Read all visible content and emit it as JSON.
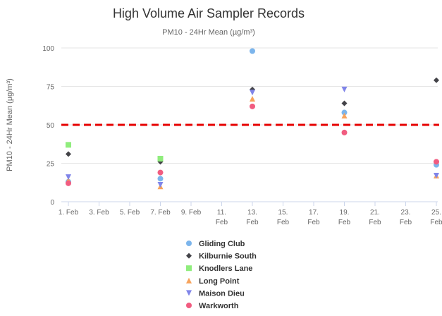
{
  "chart_data": {
    "type": "scatter",
    "title": "High Volume Air Sampler Records",
    "subtitle": "PM10 - 24Hr Mean (µg/m³)",
    "ylabel": "PM10 - 24Hr Mean (µg/m³)",
    "xlabel": "",
    "ylim": [
      0,
      100
    ],
    "yticks": [
      0,
      25,
      50,
      75,
      100
    ],
    "x_axis": {
      "type": "date",
      "range": [
        "2024-02-01",
        "2024-02-25"
      ],
      "ticks": [
        {
          "date": "2024-02-01",
          "lines": [
            "1. Feb"
          ]
        },
        {
          "date": "2024-02-03",
          "lines": [
            "3. Feb"
          ]
        },
        {
          "date": "2024-02-05",
          "lines": [
            "5. Feb"
          ]
        },
        {
          "date": "2024-02-07",
          "lines": [
            "7. Feb"
          ]
        },
        {
          "date": "2024-02-09",
          "lines": [
            "9. Feb"
          ]
        },
        {
          "date": "2024-02-11",
          "lines": [
            "11.",
            "Feb"
          ]
        },
        {
          "date": "2024-02-13",
          "lines": [
            "13.",
            "Feb"
          ]
        },
        {
          "date": "2024-02-15",
          "lines": [
            "15.",
            "Feb"
          ]
        },
        {
          "date": "2024-02-17",
          "lines": [
            "17.",
            "Feb"
          ]
        },
        {
          "date": "2024-02-19",
          "lines": [
            "19.",
            "Feb"
          ]
        },
        {
          "date": "2024-02-21",
          "lines": [
            "21.",
            "Feb"
          ]
        },
        {
          "date": "2024-02-23",
          "lines": [
            "23.",
            "Feb"
          ]
        },
        {
          "date": "2024-02-25",
          "lines": [
            "25.",
            "Feb"
          ]
        }
      ]
    },
    "reference_line": {
      "value": 50,
      "color": "#e60000",
      "style": "dashed"
    },
    "grid": true,
    "legend_position": "bottom",
    "series": [
      {
        "name": "Gliding Club",
        "marker": "circle",
        "color": "#7cb5ec",
        "points": [
          {
            "x": "2024-02-01",
            "y": 13
          },
          {
            "x": "2024-02-07",
            "y": 15
          },
          {
            "x": "2024-02-13",
            "y": 98
          },
          {
            "x": "2024-02-19",
            "y": 58
          },
          {
            "x": "2024-02-25",
            "y": 24
          }
        ]
      },
      {
        "name": "Kilburnie South",
        "marker": "diamond",
        "color": "#434348",
        "points": [
          {
            "x": "2024-02-01",
            "y": 31
          },
          {
            "x": "2024-02-07",
            "y": 26
          },
          {
            "x": "2024-02-13",
            "y": 73
          },
          {
            "x": "2024-02-19",
            "y": 64
          },
          {
            "x": "2024-02-25",
            "y": 79
          }
        ]
      },
      {
        "name": "Knodlers Lane",
        "marker": "square",
        "color": "#90ed7d",
        "points": [
          {
            "x": "2024-02-01",
            "y": 37
          },
          {
            "x": "2024-02-07",
            "y": 28
          }
        ]
      },
      {
        "name": "Long Point",
        "marker": "triangle",
        "color": "#f7a35c",
        "points": [
          {
            "x": "2024-02-01",
            "y": 14
          },
          {
            "x": "2024-02-07",
            "y": 10
          },
          {
            "x": "2024-02-13",
            "y": 67
          },
          {
            "x": "2024-02-19",
            "y": 56
          },
          {
            "x": "2024-02-25",
            "y": 17
          }
        ]
      },
      {
        "name": "Maison Dieu",
        "marker": "triangle-down",
        "color": "#8085e9",
        "points": [
          {
            "x": "2024-02-01",
            "y": 16
          },
          {
            "x": "2024-02-07",
            "y": 11
          },
          {
            "x": "2024-02-13",
            "y": 71
          },
          {
            "x": "2024-02-19",
            "y": 73
          },
          {
            "x": "2024-02-25",
            "y": 17
          }
        ]
      },
      {
        "name": "Warkworth",
        "marker": "circle",
        "color": "#f15c80",
        "points": [
          {
            "x": "2024-02-01",
            "y": 12
          },
          {
            "x": "2024-02-07",
            "y": 19
          },
          {
            "x": "2024-02-13",
            "y": 62
          },
          {
            "x": "2024-02-19",
            "y": 45
          },
          {
            "x": "2024-02-25",
            "y": 26
          }
        ]
      }
    ]
  }
}
